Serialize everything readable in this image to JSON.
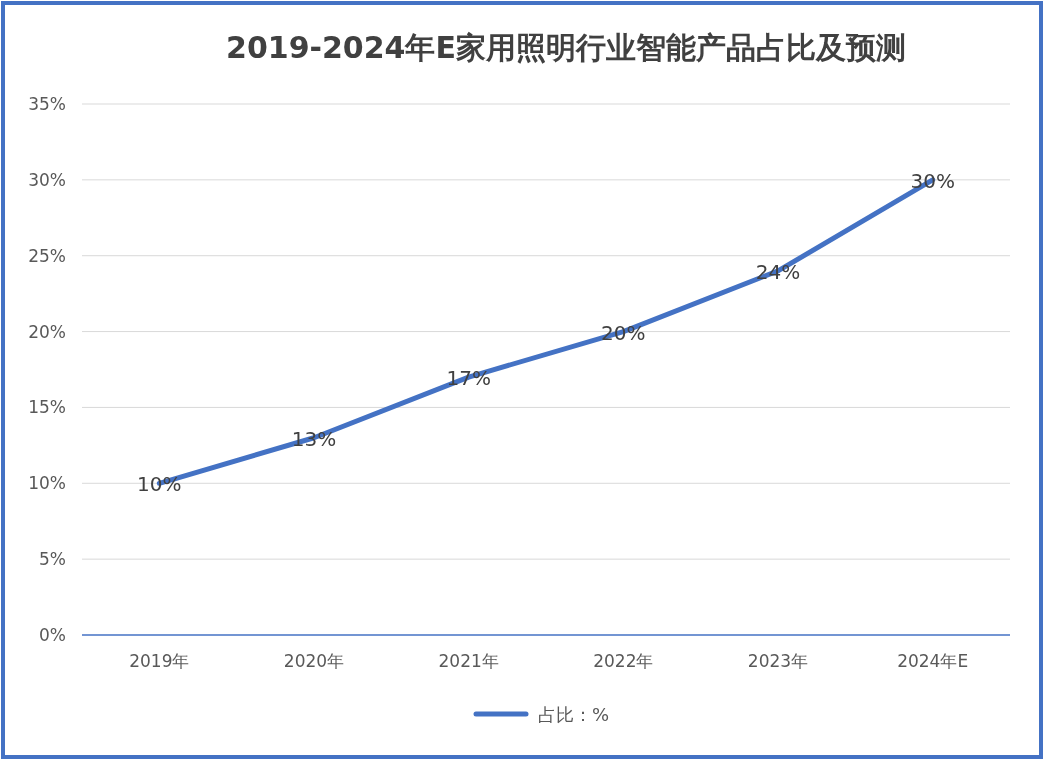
{
  "chart_data": {
    "type": "line",
    "title": "2019-2024年E家用照明行业智能产品占比及预测",
    "categories": [
      "2019年",
      "2020年",
      "2021年",
      "2022年",
      "2023年",
      "2024年E"
    ],
    "series": [
      {
        "name": "占比：%",
        "color": "#4472c4",
        "values": [
          10,
          13,
          17,
          20,
          24,
          30
        ],
        "value_labels": [
          "10%",
          "13%",
          "17%",
          "20%",
          "24%",
          "30%"
        ]
      }
    ],
    "ylim": [
      0,
      35
    ],
    "yticks": [
      {
        "value": 0,
        "label": "0%"
      },
      {
        "value": 5,
        "label": "5%"
      },
      {
        "value": 10,
        "label": "10%"
      },
      {
        "value": 15,
        "label": "15%"
      },
      {
        "value": 20,
        "label": "20%"
      },
      {
        "value": 25,
        "label": "25%"
      },
      {
        "value": 30,
        "label": "30%"
      },
      {
        "value": 35,
        "label": "35%"
      }
    ],
    "grid": "y",
    "legend": "bottom",
    "marker": "none",
    "line_style": "solid"
  }
}
